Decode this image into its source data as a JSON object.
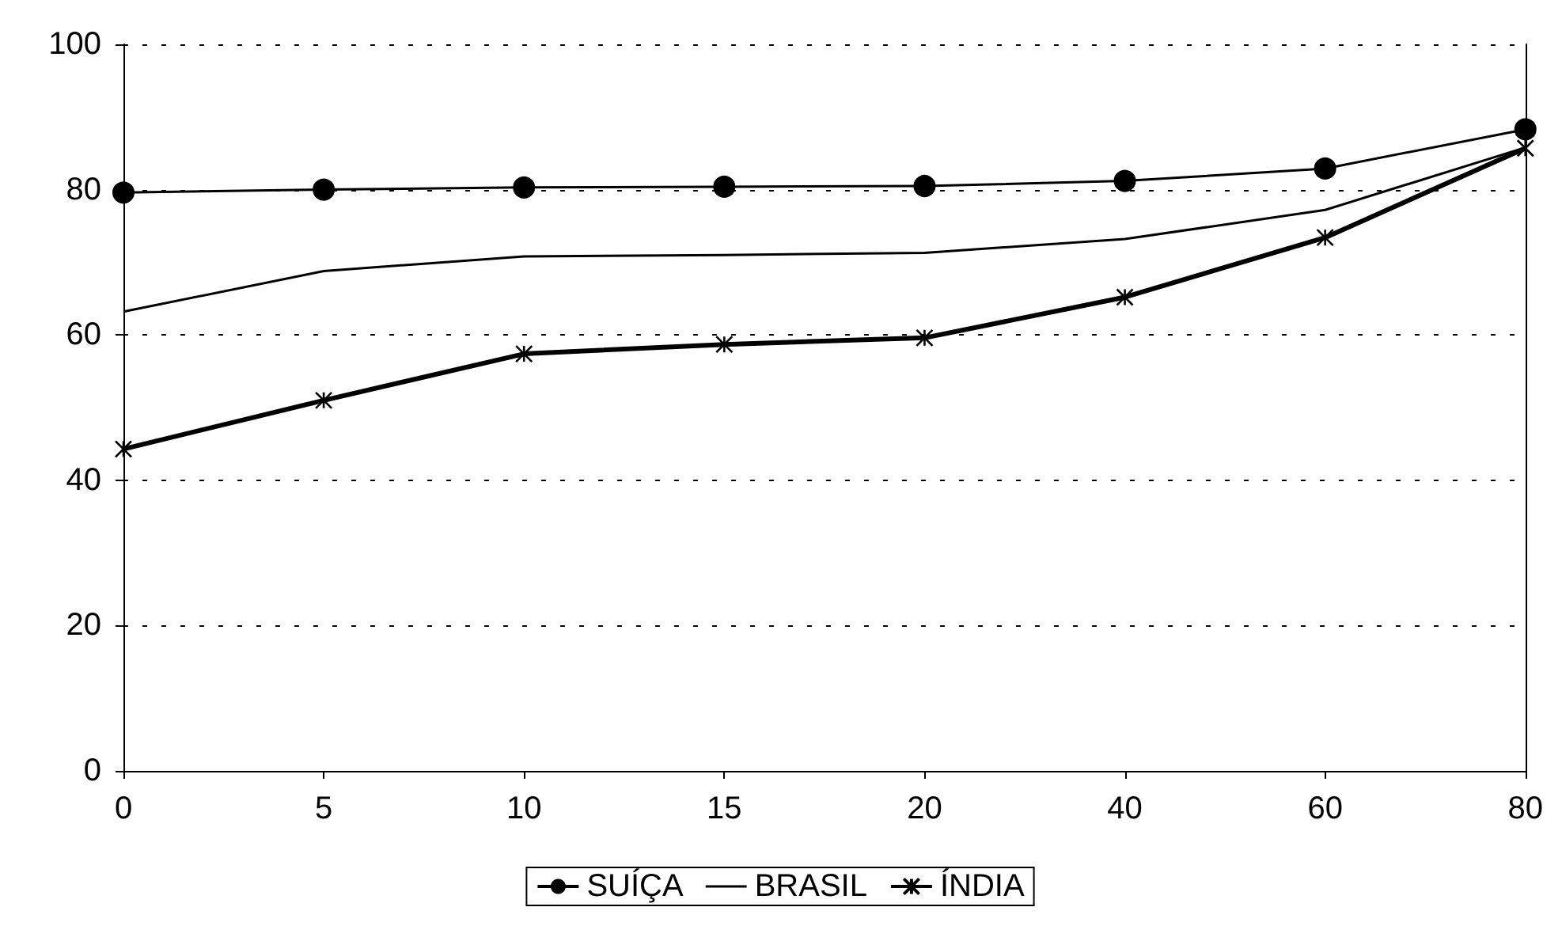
{
  "chart_data": {
    "type": "line",
    "categories": [
      "0",
      "5",
      "10",
      "15",
      "20",
      "40",
      "60",
      "80"
    ],
    "ylim": [
      0,
      100
    ],
    "yticks": [
      0,
      20,
      40,
      60,
      80,
      100
    ],
    "grid": "y",
    "legend": "bottom",
    "series": [
      {
        "name": "SUÍÇA",
        "color": "#000000",
        "marker": "circle",
        "values": [
          79.6,
          80.0,
          80.3,
          80.4,
          80.5,
          81.2,
          82.9,
          88.3
        ]
      },
      {
        "name": "BRASIL",
        "color": "#000000",
        "marker": "none",
        "values": [
          63.2,
          68.8,
          70.8,
          71.0,
          71.3,
          73.2,
          77.2,
          85.8
        ]
      },
      {
        "name": "ÍNDIA",
        "color": "#000000",
        "marker": "cross",
        "values": [
          44.3,
          51.0,
          57.4,
          58.7,
          59.6,
          65.2,
          73.4,
          85.7
        ]
      }
    ]
  }
}
